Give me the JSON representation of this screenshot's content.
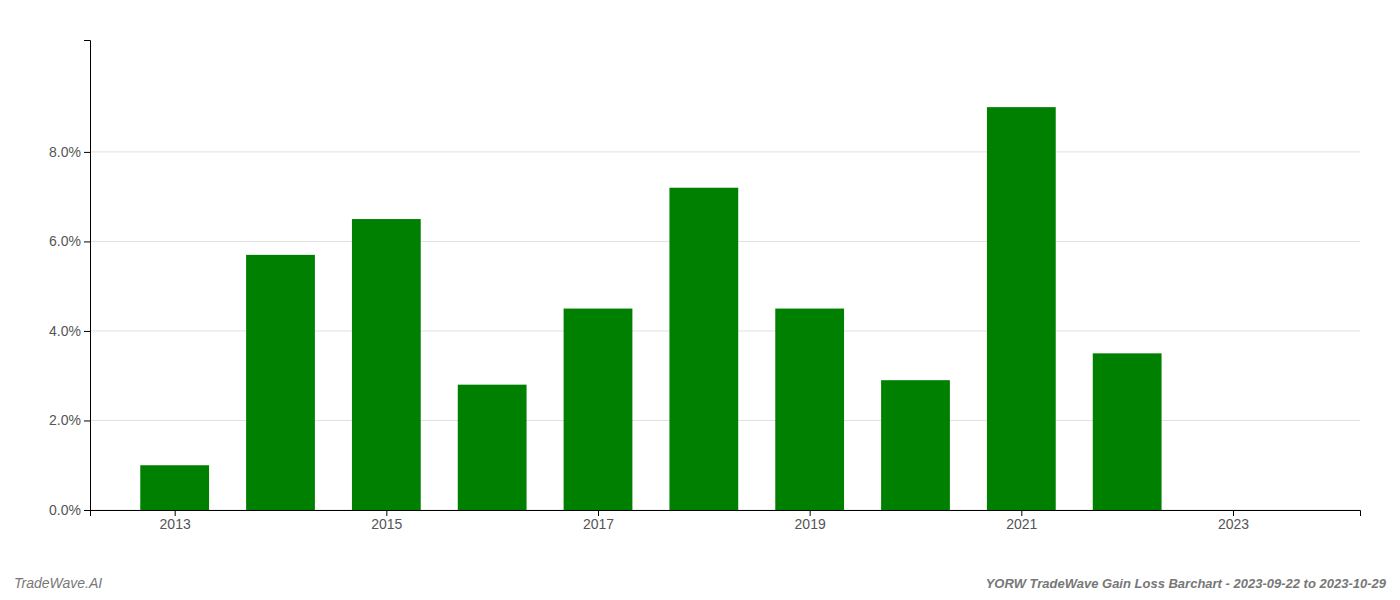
{
  "chart_data": {
    "type": "bar",
    "title": "YORW TradeWave Gain Loss Barchart - 2023-09-22 to 2023-10-29",
    "annotations": [
      "TradeWave.AI"
    ],
    "x": [
      2013,
      2014,
      2015,
      2016,
      2017,
      2018,
      2019,
      2020,
      2021,
      2022
    ],
    "values": [
      0.01,
      0.057,
      0.065,
      0.028,
      0.045,
      0.072,
      0.045,
      0.029,
      0.09,
      0.035
    ],
    "color": "#008000",
    "xlim": [
      2012.2,
      2024.2
    ],
    "xticks": [
      2013,
      2015,
      2017,
      2019,
      2021,
      2023
    ],
    "ylim": [
      0.0,
      0.105
    ],
    "yticks": [
      {
        "value": 0.0,
        "label": "0.0%"
      },
      {
        "value": 0.02,
        "label": "2.0%"
      },
      {
        "value": 0.04,
        "label": "4.0%"
      },
      {
        "value": 0.06,
        "label": "6.0%"
      },
      {
        "value": 0.08,
        "label": "8.0%"
      }
    ],
    "grid": true
  }
}
